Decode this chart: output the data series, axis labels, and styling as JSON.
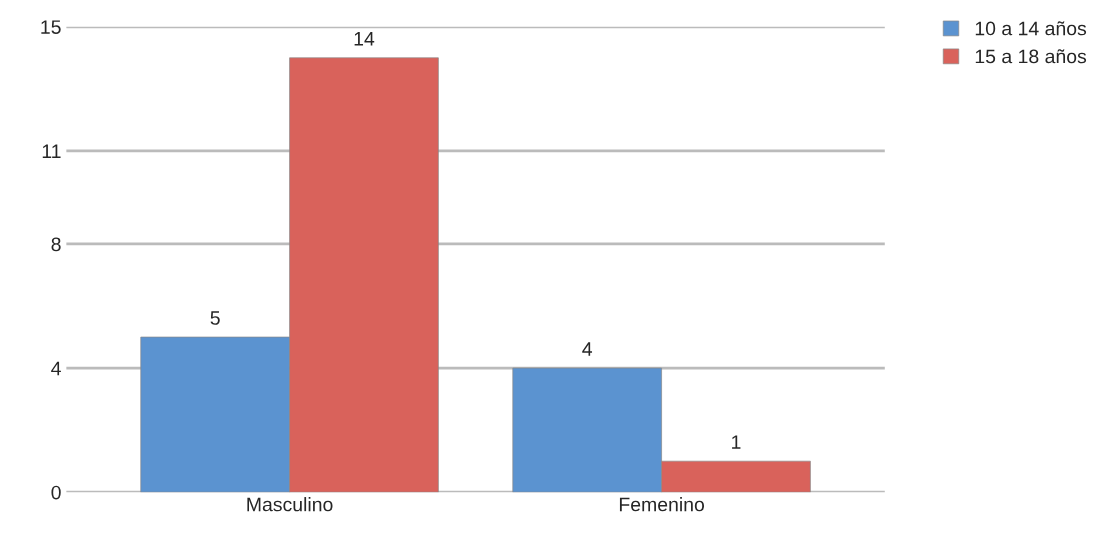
{
  "chart_data": {
    "type": "bar",
    "categories": [
      "Masculino",
      "Femenino"
    ],
    "series": [
      {
        "name": "10 a 14 años",
        "color": "#5b93d0",
        "values": [
          5,
          4
        ]
      },
      {
        "name": "15 a 18 años",
        "color": "#d9625b",
        "values": [
          14,
          1
        ]
      }
    ],
    "ylim": [
      0,
      15
    ],
    "yticks": [
      0,
      4,
      8,
      11,
      15
    ],
    "grid": "y",
    "legend": "top right",
    "data_labels": true
  }
}
